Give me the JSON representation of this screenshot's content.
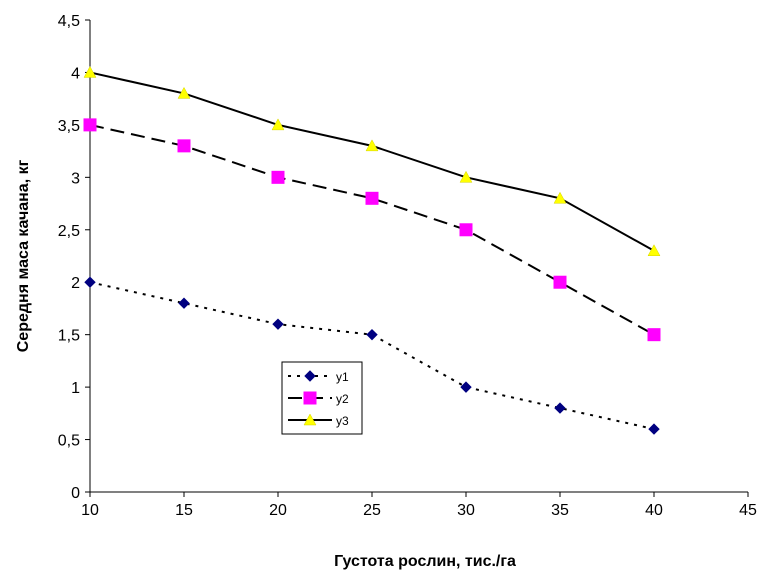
{
  "chart_data": {
    "type": "line",
    "xlabel": "Густота рослин, тис./га",
    "ylabel": "Середня маса качана, кг",
    "xlim": [
      10,
      45
    ],
    "ylim": [
      0,
      4.5
    ],
    "x_ticks": [
      "10",
      "15",
      "20",
      "25",
      "30",
      "35",
      "40",
      "45"
    ],
    "y_ticks": [
      "0",
      "0,5",
      "1",
      "1,5",
      "2",
      "2,5",
      "3",
      "3,5",
      "4",
      "4,5"
    ],
    "x": [
      10,
      15,
      20,
      25,
      30,
      35,
      40
    ],
    "grid": false,
    "legend_position": "center-left",
    "series": [
      {
        "name": "y1",
        "values": [
          2.0,
          1.8,
          1.6,
          1.5,
          1.0,
          0.8,
          0.6
        ],
        "color": "#000080",
        "marker": "diamond",
        "line": "dotted"
      },
      {
        "name": "y2",
        "values": [
          3.5,
          3.3,
          3.0,
          2.8,
          2.5,
          2.0,
          1.5
        ],
        "color": "#FF00FF",
        "marker": "square",
        "line": "dashed"
      },
      {
        "name": "y3",
        "values": [
          4.0,
          3.8,
          3.5,
          3.3,
          3.0,
          2.8,
          2.3
        ],
        "color": "#FFFF00",
        "marker": "triangle",
        "line": "solid"
      }
    ]
  }
}
